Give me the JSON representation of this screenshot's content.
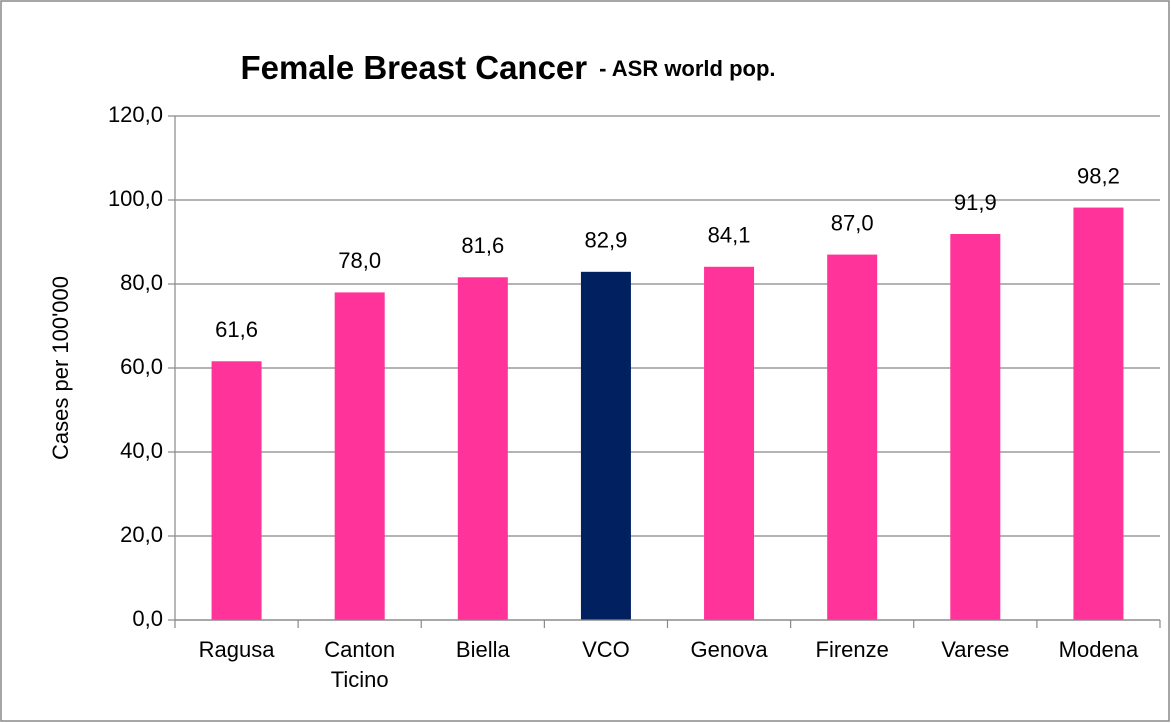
{
  "chart_data": {
    "type": "bar",
    "title": "Female Breast Cancer",
    "subtitle": "- ASR world pop.",
    "y_label": "Cases per 100'000",
    "categories": [
      "Ragusa",
      "Canton Ticino",
      "Biella",
      "VCO",
      "Genova",
      "Firenze",
      "Varese",
      "Modena"
    ],
    "values": [
      61.6,
      78.0,
      81.6,
      82.9,
      84.1,
      87.0,
      91.9,
      98.2
    ],
    "value_labels": [
      "61,6",
      "78,0",
      "81,6",
      "82,9",
      "84,1",
      "87,0",
      "91,9",
      "98,2"
    ],
    "colors": [
      "#ff3399",
      "#ff3399",
      "#ff3399",
      "#002060",
      "#ff3399",
      "#ff3399",
      "#ff3399",
      "#ff3399"
    ],
    "ylim": [
      0,
      120
    ],
    "yticks": [
      {
        "value": 0,
        "label": "0,0"
      },
      {
        "value": 20,
        "label": "20,0"
      },
      {
        "value": 40,
        "label": "40,0"
      },
      {
        "value": 60,
        "label": "60,0"
      },
      {
        "value": 80,
        "label": "80,0"
      },
      {
        "value": 100,
        "label": "100,0"
      },
      {
        "value": 120,
        "label": "120,0"
      }
    ],
    "grid": true
  }
}
